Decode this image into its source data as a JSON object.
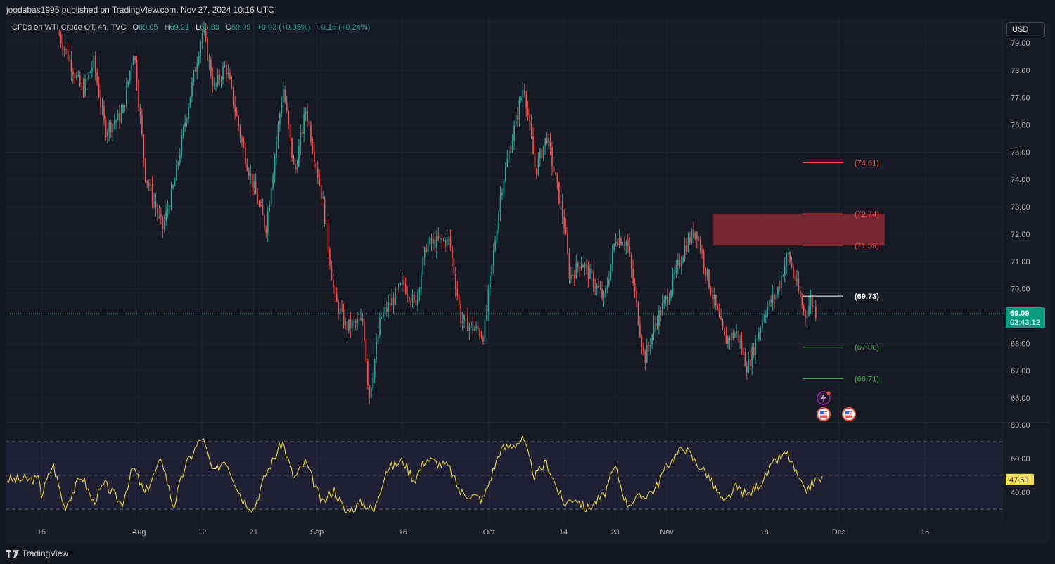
{
  "header": {
    "publisher_text": "joodabas1995 published on TradingView.com, Nov 27, 2024 10:16 UTC"
  },
  "legend": {
    "symbol": "CFDs on WTI Crude Oil, 4h, TVC",
    "o_label": "O",
    "o_value": "69.05",
    "h_label": "H",
    "h_value": "69.21",
    "l_label": "L",
    "l_value": "68.89",
    "c_label": "C",
    "c_value": "69.09",
    "change": "+0.03 (+0.05%)",
    "change2": "+0.16 (+0.24%)"
  },
  "currency_button": "USD",
  "footer": {
    "brand": "TradingView"
  },
  "colors": {
    "up": "#26a69a",
    "down": "#ef5350",
    "rsi": "#e8d33a",
    "zone": "#8b2a35",
    "resistance": "#ef5350",
    "support": "#4caf50",
    "pivot": "#ffffff",
    "price_badge": "#089981",
    "rsi_badge": "#f5e25a"
  },
  "icons": [
    "lightning-event-icon",
    "us-flag-event-icon",
    "us-flag-event-icon"
  ],
  "chart_data": [
    {
      "type": "candlestick",
      "title": "CFDs on WTI Crude Oil, 4h, TVC",
      "ylim": [
        65.0,
        79.4
      ],
      "y_ticks": [
        "79.00",
        "78.00",
        "77.00",
        "76.00",
        "75.00",
        "74.00",
        "73.00",
        "72.00",
        "71.00",
        "70.00",
        "68.00",
        "67.00",
        "66.00"
      ],
      "x_ticks": [
        "15",
        "Aug",
        "12",
        "21",
        "Sep",
        "16",
        "Oct",
        "14",
        "23",
        "Nov",
        "18",
        "Dec",
        "16"
      ],
      "last_price": "69.09",
      "countdown": "03:43:12",
      "price_path": [
        [
          "Jul 18",
          79.3
        ],
        [
          "Jul 22",
          77.2
        ],
        [
          "Jul 24",
          78.3
        ],
        [
          "Jul 26",
          75.8
        ],
        [
          "Jul 29",
          76.4
        ],
        [
          "Jul 31",
          78.8
        ],
        [
          "Aug 2",
          74.2
        ],
        [
          "Aug 5",
          72.2
        ],
        [
          "Aug 7",
          73.8
        ],
        [
          "Aug 9",
          76.2
        ],
        [
          "Aug 12",
          79.5
        ],
        [
          "Aug 14",
          77.3
        ],
        [
          "Aug 16",
          78.2
        ],
        [
          "Aug 19",
          75.2
        ],
        [
          "Aug 21",
          73.6
        ],
        [
          "Aug 23",
          72.2
        ],
        [
          "Aug 26",
          77.4
        ],
        [
          "Aug 28",
          74.2
        ],
        [
          "Aug 30",
          76.6
        ],
        [
          "Sep 2",
          73.1
        ],
        [
          "Sep 4",
          69.6
        ],
        [
          "Sep 6",
          68.6
        ],
        [
          "Sep 9",
          68.8
        ],
        [
          "Sep 10",
          66.0
        ],
        [
          "Sep 12",
          68.9
        ],
        [
          "Sep 16",
          70.2
        ],
        [
          "Sep 18",
          69.4
        ],
        [
          "Sep 20",
          71.6
        ],
        [
          "Sep 24",
          71.8
        ],
        [
          "Sep 26",
          68.9
        ],
        [
          "Sep 30",
          68.3
        ],
        [
          "Oct 3",
          73.6
        ],
        [
          "Oct 7",
          77.5
        ],
        [
          "Oct 9",
          74.3
        ],
        [
          "Oct 11",
          75.6
        ],
        [
          "Oct 14",
          72.4
        ],
        [
          "Oct 15",
          70.4
        ],
        [
          "Oct 17",
          71.0
        ],
        [
          "Oct 21",
          69.6
        ],
        [
          "Oct 23",
          71.9
        ],
        [
          "Oct 25",
          71.7
        ],
        [
          "Oct 28",
          67.4
        ],
        [
          "Oct 30",
          68.8
        ],
        [
          "Nov 1",
          69.7
        ],
        [
          "Nov 4",
          71.5
        ],
        [
          "Nov 6",
          72.2
        ],
        [
          "Nov 8",
          70.4
        ],
        [
          "Nov 11",
          68.1
        ],
        [
          "Nov 13",
          68.4
        ],
        [
          "Nov 15",
          67.1
        ],
        [
          "Nov 18",
          69.2
        ],
        [
          "Nov 20",
          69.8
        ],
        [
          "Nov 22",
          71.3
        ],
        [
          "Nov 25",
          69.0
        ],
        [
          "Nov 26",
          69.6
        ],
        [
          "Nov 27",
          69.09
        ]
      ],
      "resistance_zone": {
        "from": 71.59,
        "to": 72.74
      },
      "levels": [
        {
          "label": "(74.61)",
          "value": 74.61,
          "kind": "resistance"
        },
        {
          "label": "(72.74)",
          "value": 72.74,
          "kind": "resistance"
        },
        {
          "label": "(71.59)",
          "value": 71.59,
          "kind": "resistance"
        },
        {
          "label": "(69.73)",
          "value": 69.73,
          "kind": "pivot"
        },
        {
          "label": "(67.86)",
          "value": 67.86,
          "kind": "support"
        },
        {
          "label": "(66.71)",
          "value": 66.71,
          "kind": "support"
        }
      ]
    },
    {
      "type": "line",
      "title": "RSI",
      "ylim": [
        27.0,
        80.0
      ],
      "y_ticks": [
        "80.00",
        "60.00",
        "40.00"
      ],
      "band": [
        30,
        70
      ],
      "midline": 50,
      "last_value": "47.59",
      "rsi_path": [
        [
          "Jul 15",
          38
        ],
        [
          "Jul 17",
          57
        ],
        [
          "Jul 19",
          31
        ],
        [
          "Jul 22",
          50
        ],
        [
          "Jul 24",
          34
        ],
        [
          "Jul 26",
          45
        ],
        [
          "Jul 29",
          33
        ],
        [
          "Jul 31",
          55
        ],
        [
          "Aug 2",
          39
        ],
        [
          "Aug 5",
          60
        ],
        [
          "Aug 7",
          31
        ],
        [
          "Aug 9",
          55
        ],
        [
          "Aug 12",
          73
        ],
        [
          "Aug 14",
          51
        ],
        [
          "Aug 16",
          60
        ],
        [
          "Aug 19",
          36
        ],
        [
          "Aug 21",
          30
        ],
        [
          "Aug 23",
          50
        ],
        [
          "Aug 26",
          70
        ],
        [
          "Aug 28",
          48
        ],
        [
          "Aug 30",
          58
        ],
        [
          "Sep 2",
          33
        ],
        [
          "Sep 4",
          42
        ],
        [
          "Sep 6",
          28
        ],
        [
          "Sep 9",
          34
        ],
        [
          "Sep 11",
          29
        ],
        [
          "Sep 13",
          53
        ],
        [
          "Sep 16",
          59
        ],
        [
          "Sep 18",
          47
        ],
        [
          "Sep 20",
          60
        ],
        [
          "Sep 24",
          55
        ],
        [
          "Sep 26",
          40
        ],
        [
          "Sep 30",
          36
        ],
        [
          "Oct 3",
          65
        ],
        [
          "Oct 7",
          71
        ],
        [
          "Oct 9",
          49
        ],
        [
          "Oct 11",
          58
        ],
        [
          "Oct 14",
          33
        ],
        [
          "Oct 16",
          37
        ],
        [
          "Oct 18",
          30
        ],
        [
          "Oct 21",
          38
        ],
        [
          "Oct 23",
          55
        ],
        [
          "Oct 25",
          33
        ],
        [
          "Oct 28",
          38
        ],
        [
          "Oct 30",
          42
        ],
        [
          "Nov 1",
          56
        ],
        [
          "Nov 4",
          67
        ],
        [
          "Nov 6",
          58
        ],
        [
          "Nov 8",
          51
        ],
        [
          "Nov 11",
          33
        ],
        [
          "Nov 13",
          43
        ],
        [
          "Nov 15",
          38
        ],
        [
          "Nov 18",
          48
        ],
        [
          "Nov 20",
          59
        ],
        [
          "Nov 22",
          63
        ],
        [
          "Nov 25",
          40
        ],
        [
          "Nov 27",
          47.59
        ]
      ]
    }
  ]
}
